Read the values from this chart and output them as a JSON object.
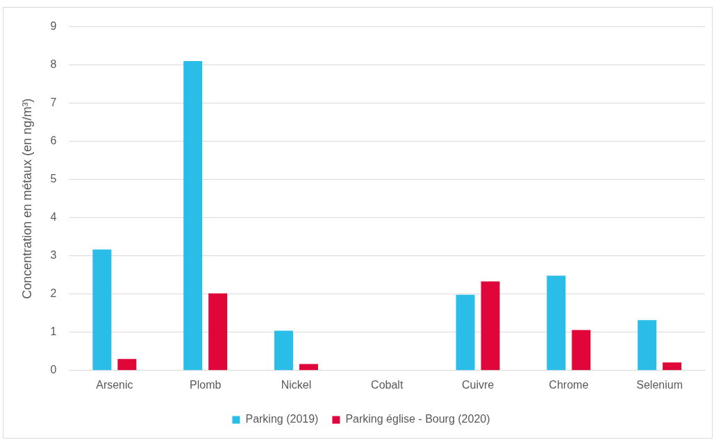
{
  "chart_data": {
    "type": "bar",
    "ylabel": "Concentration en métaux (en ng/m³)",
    "categories": [
      "Arsenic",
      "Plomb",
      "Nickel",
      "Cobalt",
      "Cuivre",
      "Chrome",
      "Selenium"
    ],
    "series": [
      {
        "name": "Parking (2019)",
        "color": "#29bde8",
        "values": [
          3.17,
          8.1,
          1.04,
          0,
          1.98,
          2.48,
          1.32
        ]
      },
      {
        "name": "Parking église - Bourg (2020)",
        "color": "#e0063a",
        "values": [
          0.3,
          2.02,
          0.17,
          0,
          2.33,
          1.06,
          0.21
        ]
      }
    ],
    "ylim": [
      0,
      9
    ],
    "yticks": [
      0,
      1,
      2,
      3,
      4,
      5,
      6,
      7,
      8,
      9
    ],
    "grid": "y",
    "legend": "bottom"
  }
}
